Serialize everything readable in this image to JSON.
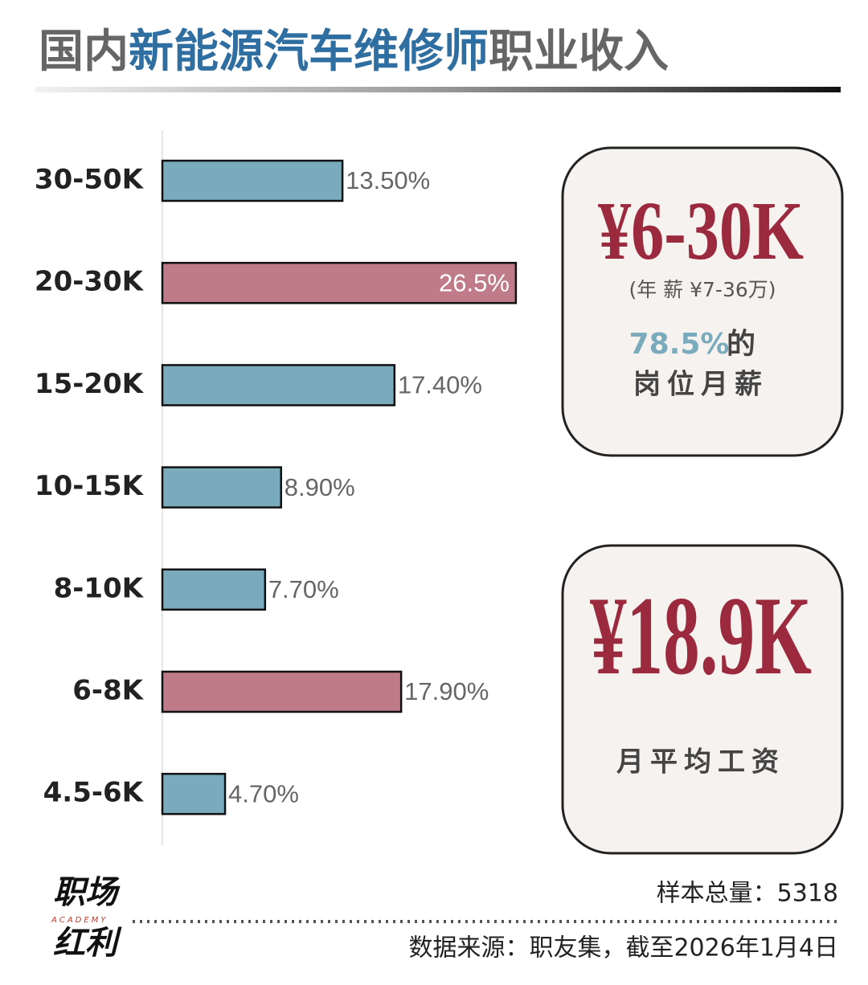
{
  "title": [
    {
      "text": "国内",
      "color": "#666666"
    },
    {
      "text": "新能源汽车维修师",
      "color": "#2f6ea1"
    },
    {
      "text": "职业收入",
      "color": "#666666"
    }
  ],
  "chart_data": {
    "type": "bar",
    "orientation": "horizontal",
    "categories": [
      "30-50K",
      "20-30K",
      "15-20K",
      "10-15K",
      "8-10K",
      "6-8K",
      "4.5-6K"
    ],
    "values": [
      13.5,
      26.5,
      17.4,
      8.9,
      7.7,
      17.9,
      4.7
    ],
    "value_labels": [
      "13.50%",
      "26.5%",
      "17.40%",
      "8.90%",
      "7.70%",
      "17.90%",
      "4.70%"
    ],
    "colors": [
      "#7aabbd",
      "#c07b88",
      "#7aabbd",
      "#7aabbd",
      "#7aabbd",
      "#c07b88",
      "#7aabbd"
    ],
    "xlim": [
      0,
      30
    ]
  },
  "highlights": [
    {
      "value": "¥6-30K",
      "note": "(年 薪 ¥7-36万)",
      "share": "78.5%",
      "share_suffix": "的",
      "caption": "岗位月薪"
    },
    {
      "value": "¥18.9K",
      "caption": "月平均工资"
    }
  ],
  "footer": {
    "sample": "样本总量：5318",
    "source": "数据来源：职友集，截至2026年1月4日"
  },
  "logo": {
    "top": "职场",
    "middle": "ACADEMY",
    "bottom": "红利"
  }
}
